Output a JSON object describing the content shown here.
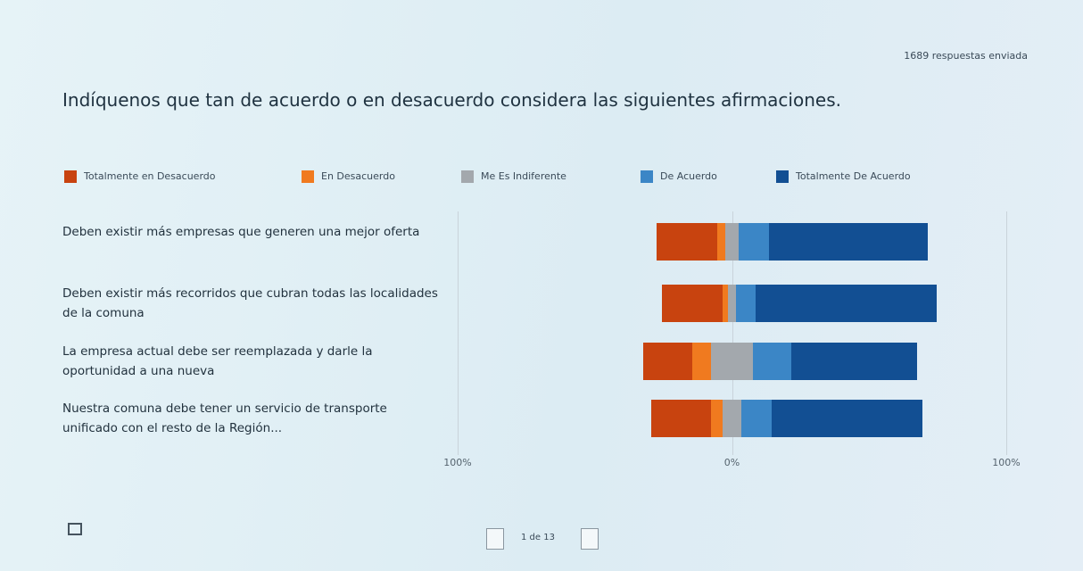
{
  "chart_data": {
    "type": "diverging_bar",
    "response_count": "1689 respuestas enviada",
    "title": "Indíquenos que tan de acuerdo o en desacuerdo considera las siguientes afirmaciones.",
    "categories": [
      "Deben existir más empresas que generen una mejor oferta",
      "Deben existir más recorridos que cubran todas las localidades de la comuna",
      "La empresa actual debe ser reemplazada y darle la oportunidad a una nueva",
      "Nuestra comuna debe tener un servicio de transporte unificado con el resto de la Región..."
    ],
    "series": [
      {
        "name": "Totalmente en Desacuerdo",
        "color": "#c8430f",
        "values": [
          22,
          22,
          18,
          22
        ]
      },
      {
        "name": "En Desacuerdo",
        "color": "#f07a1f",
        "values": [
          3,
          2,
          7,
          4
        ]
      },
      {
        "name": "Me Es Indiferente",
        "color": "#a3a8ad",
        "values": [
          5,
          3,
          15,
          7
        ]
      },
      {
        "name": "De Acuerdo",
        "color": "#3b86c6",
        "values": [
          11,
          7,
          14,
          11
        ]
      },
      {
        "name": "Totalmente De Acuerdo",
        "color": "#124f93",
        "values": [
          58,
          66,
          46,
          55
        ]
      }
    ],
    "xlim": [
      -100,
      100
    ],
    "xticks": [
      {
        "value": -100,
        "label": "100%"
      },
      {
        "value": 0,
        "label": "0%"
      },
      {
        "value": 100,
        "label": "100%"
      }
    ],
    "grid": true,
    "pagination": "1 de 13"
  }
}
